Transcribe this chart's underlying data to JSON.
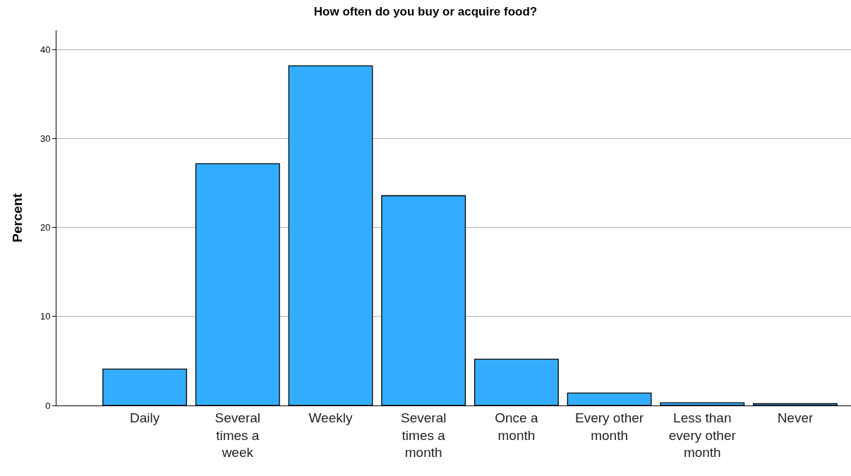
{
  "chart_data": {
    "type": "bar",
    "title": "How often do you buy or acquire food?",
    "ylabel": "Percent",
    "categories": [
      "Daily",
      "Several times a week",
      "Weekly",
      "Several times a month",
      "Once a month",
      "Every other month",
      "Less than every other month",
      "Never"
    ],
    "values": [
      4.1,
      27.2,
      38.2,
      23.6,
      5.2,
      1.4,
      0.3,
      0.2
    ],
    "color": "#33adff",
    "ylim": [
      0,
      42.2
    ],
    "yticks": [
      0,
      10,
      20,
      30,
      40
    ],
    "grid": "y"
  }
}
